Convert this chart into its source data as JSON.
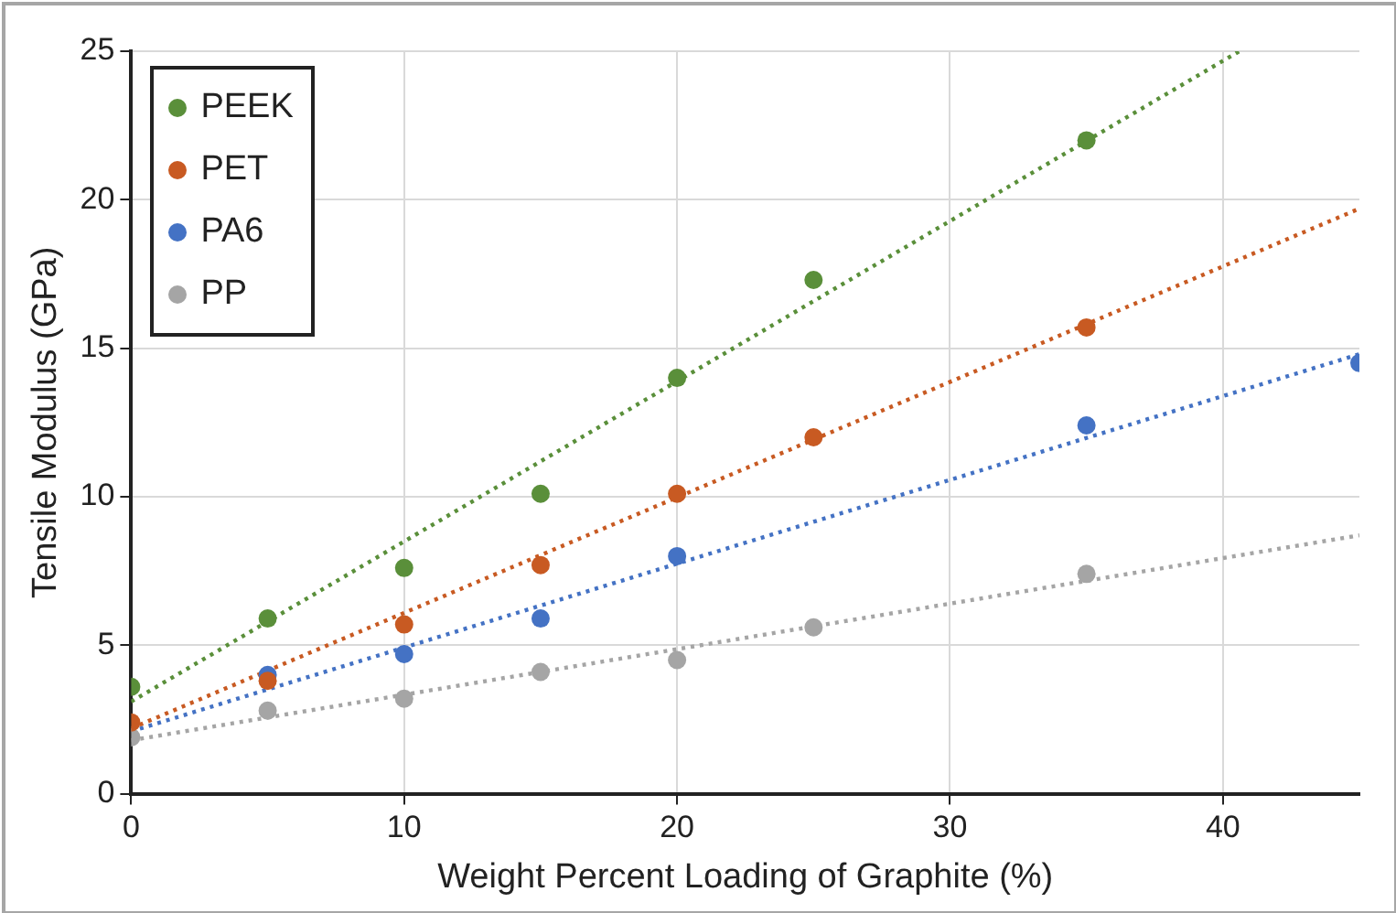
{
  "chart_data": {
    "type": "scatter",
    "xlabel": "Weight Percent Loading of Graphite (%)",
    "ylabel": "Tensile Modulus (GPa)",
    "xlim": [
      0,
      45
    ],
    "xticks": [
      0,
      10,
      20,
      30,
      40
    ],
    "ylim": [
      0,
      25
    ],
    "yticks": [
      0,
      5,
      10,
      15,
      20,
      25
    ],
    "grid": true,
    "legend": "top left",
    "marker": "circle",
    "series": [
      {
        "name": "PEEK",
        "color": "#5a8f3a",
        "x": [
          0,
          5,
          10,
          15,
          20,
          25,
          35
        ],
        "values": [
          3.6,
          5.9,
          7.6,
          10.1,
          14.0,
          17.3,
          22.0
        ]
      },
      {
        "name": "PET",
        "color": "#c85a22",
        "x": [
          0,
          5,
          10,
          15,
          20,
          25,
          35
        ],
        "values": [
          2.4,
          3.8,
          5.7,
          7.7,
          10.1,
          12.0,
          15.7
        ]
      },
      {
        "name": "PA6",
        "color": "#4472c4",
        "x": [
          5,
          10,
          15,
          20,
          35,
          45
        ],
        "values": [
          4.0,
          4.7,
          5.9,
          8.0,
          12.4,
          14.5
        ]
      },
      {
        "name": "PP",
        "color": "#a5a5a5",
        "x": [
          0,
          5,
          10,
          15,
          20,
          25,
          35
        ],
        "values": [
          1.9,
          2.8,
          3.2,
          4.1,
          4.5,
          5.6,
          7.4
        ]
      },
      {
        "type": "line",
        "color": "#5a8f3a",
        "x": [
          0,
          40.6
        ],
        "values": [
          3.1,
          25
        ],
        "line_style": "dotted",
        "marker": "none"
      },
      {
        "type": "line",
        "color": "#c85a22",
        "x": [
          0,
          45
        ],
        "values": [
          2.2,
          19.7
        ],
        "line_style": "dotted",
        "marker": "none"
      },
      {
        "type": "line",
        "color": "#4472c4",
        "x": [
          0,
          45
        ],
        "values": [
          2.1,
          14.8
        ],
        "line_style": "dotted",
        "marker": "none"
      },
      {
        "type": "line",
        "color": "#a5a5a5",
        "x": [
          0,
          45
        ],
        "values": [
          1.8,
          8.7
        ],
        "line_style": "dotted",
        "marker": "none"
      }
    ]
  }
}
